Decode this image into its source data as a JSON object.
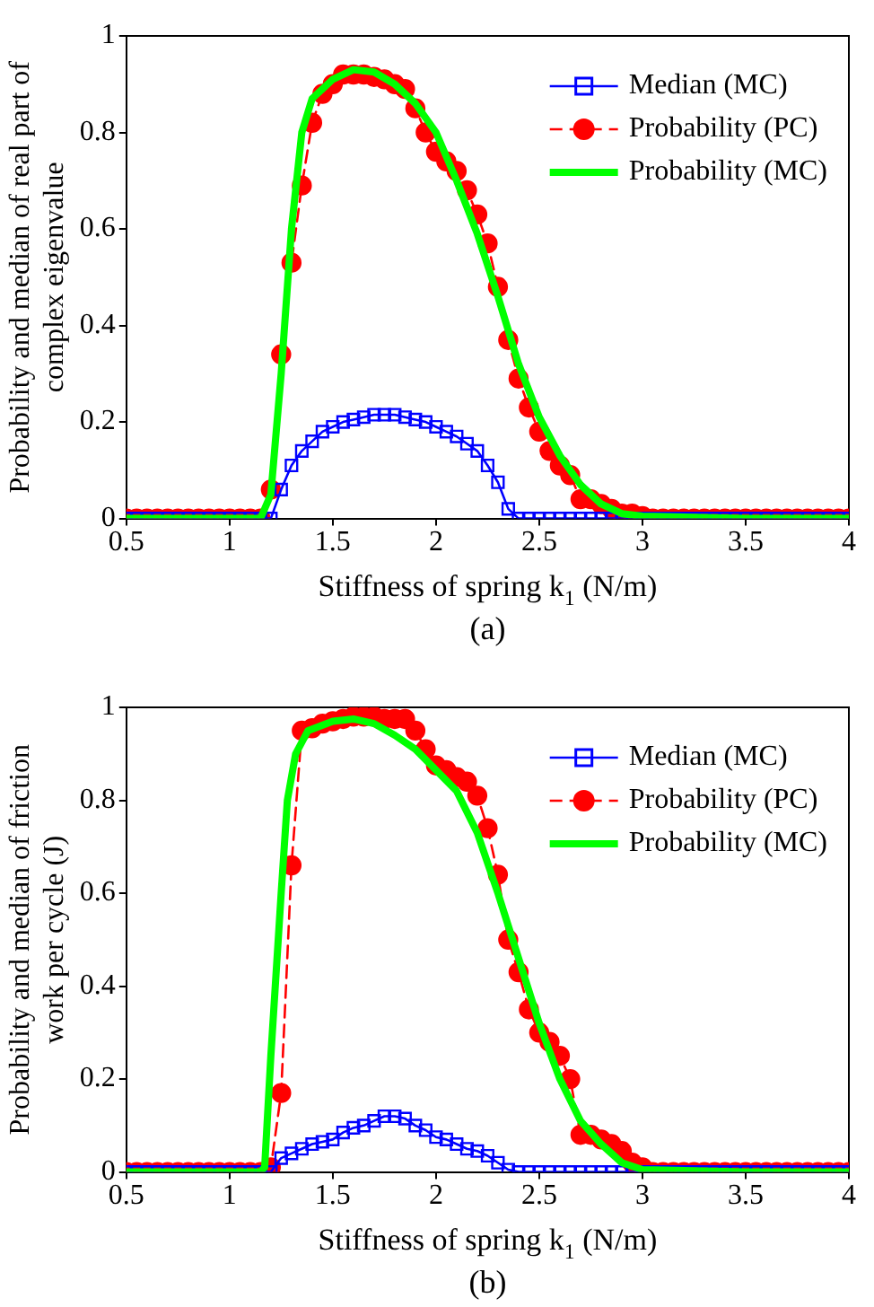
{
  "chart_data": [
    {
      "type": "line",
      "xlabel": "Stiffness of spring k$_{1}$ (N/m)",
      "ylabel": "Probability and median of real part of complex eigenvalue",
      "annotations": [
        "(a)"
      ],
      "xlim": [
        0.5,
        4
      ],
      "xticks": [
        0.5,
        1,
        1.5,
        2,
        2.5,
        3,
        3.5,
        4
      ],
      "ylim": [
        0,
        1
      ],
      "yticks": [
        0,
        0.2,
        0.4,
        0.6,
        0.8,
        1
      ],
      "grid": false,
      "legend": "top right",
      "x": [
        0.5,
        0.55,
        0.6,
        0.65,
        0.7,
        0.75,
        0.8,
        0.85,
        0.9,
        0.95,
        1,
        1.05,
        1.1,
        1.15,
        1.2,
        1.25,
        1.3,
        1.35,
        1.4,
        1.45,
        1.5,
        1.55,
        1.6,
        1.65,
        1.7,
        1.75,
        1.8,
        1.85,
        1.9,
        1.95,
        2,
        2.05,
        2.1,
        2.15,
        2.2,
        2.25,
        2.3,
        2.35,
        2.4,
        2.45,
        2.5,
        2.55,
        2.6,
        2.65,
        2.7,
        2.75,
        2.8,
        2.85,
        2.9,
        2.95,
        3,
        3.05,
        3.1,
        3.15,
        3.2,
        3.25,
        3.3,
        3.35,
        3.4,
        3.45,
        3.5,
        3.55,
        3.6,
        3.65,
        3.7,
        3.75,
        3.8,
        3.85,
        3.9,
        3.95,
        4
      ],
      "series": [
        {
          "name": "Median (MC)",
          "color": "#0000ff",
          "marker": "square",
          "line_style": "solid",
          "values": [
            0,
            0,
            0,
            0,
            0,
            0,
            0,
            0,
            0,
            0,
            0,
            0,
            0,
            0,
            0,
            0.06,
            0.11,
            0.14,
            0.16,
            0.18,
            0.19,
            0.2,
            0.205,
            0.21,
            0.215,
            0.215,
            0.215,
            0.21,
            0.205,
            0.2,
            0.19,
            0.18,
            0.17,
            0.155,
            0.14,
            0.11,
            0.075,
            0.02,
            0,
            0,
            0,
            0,
            0,
            0,
            0,
            0,
            0,
            0,
            0,
            0,
            0,
            0,
            0,
            0,
            0,
            0,
            0,
            0,
            0,
            0,
            0,
            0,
            0,
            0,
            0,
            0,
            0,
            0,
            0,
            0,
            0
          ]
        },
        {
          "name": "Probability (PC)",
          "color": "#ff0000",
          "marker": "circle",
          "line_style": "dashed",
          "values": [
            0,
            0,
            0,
            0,
            0,
            0,
            0,
            0,
            0,
            0,
            0,
            0,
            0,
            0,
            0.06,
            0.34,
            0.53,
            0.69,
            0.82,
            0.88,
            0.9,
            0.92,
            0.92,
            0.92,
            0.915,
            0.91,
            0.9,
            0.89,
            0.85,
            0.8,
            0.76,
            0.74,
            0.72,
            0.68,
            0.63,
            0.57,
            0.48,
            0.37,
            0.29,
            0.23,
            0.18,
            0.14,
            0.11,
            0.09,
            0.04,
            0.04,
            0.03,
            0.02,
            0.01,
            0.01,
            0.005,
            0,
            0,
            0,
            0,
            0,
            0,
            0,
            0,
            0,
            0,
            0,
            0,
            0,
            0,
            0,
            0,
            0,
            0,
            0,
            0
          ]
        },
        {
          "name": "Probability (MC)",
          "color": "#00ff00",
          "marker": "none",
          "line_style": "solid",
          "x": [
            0.5,
            1,
            1.15,
            1.2,
            1.25,
            1.3,
            1.35,
            1.4,
            1.5,
            1.6,
            1.7,
            1.8,
            1.9,
            2,
            2.1,
            2.2,
            2.3,
            2.4,
            2.5,
            2.6,
            2.7,
            2.8,
            2.9,
            3,
            3.5,
            4
          ],
          "values": [
            0,
            0,
            0,
            0.05,
            0.3,
            0.6,
            0.8,
            0.87,
            0.91,
            0.93,
            0.925,
            0.9,
            0.86,
            0.8,
            0.7,
            0.59,
            0.46,
            0.32,
            0.21,
            0.13,
            0.07,
            0.03,
            0.01,
            0.005,
            0,
            0
          ]
        }
      ]
    },
    {
      "type": "line",
      "xlabel": "Stiffness of spring k$_{1}$ (N/m)",
      "ylabel": "Probability and median of friction work per cycle (J)",
      "annotations": [
        "(b)"
      ],
      "xlim": [
        0.5,
        4
      ],
      "xticks": [
        0.5,
        1,
        1.5,
        2,
        2.5,
        3,
        3.5,
        4
      ],
      "ylim": [
        0,
        1
      ],
      "yticks": [
        0,
        0.2,
        0.4,
        0.6,
        0.8,
        1
      ],
      "grid": false,
      "legend": "top right",
      "x": [
        0.5,
        0.55,
        0.6,
        0.65,
        0.7,
        0.75,
        0.8,
        0.85,
        0.9,
        0.95,
        1,
        1.05,
        1.1,
        1.15,
        1.2,
        1.25,
        1.3,
        1.35,
        1.4,
        1.45,
        1.5,
        1.55,
        1.6,
        1.65,
        1.7,
        1.75,
        1.8,
        1.85,
        1.9,
        1.95,
        2,
        2.05,
        2.1,
        2.15,
        2.2,
        2.25,
        2.3,
        2.35,
        2.4,
        2.45,
        2.5,
        2.55,
        2.6,
        2.65,
        2.7,
        2.75,
        2.8,
        2.85,
        2.9,
        2.95,
        3,
        3.05,
        3.1,
        3.15,
        3.2,
        3.25,
        3.3,
        3.35,
        3.4,
        3.45,
        3.5,
        3.55,
        3.6,
        3.65,
        3.7,
        3.75,
        3.8,
        3.85,
        3.9,
        3.95,
        4
      ],
      "series": [
        {
          "name": "Median (MC)",
          "color": "#0000ff",
          "marker": "square",
          "line_style": "solid",
          "values": [
            0,
            0,
            0,
            0,
            0,
            0,
            0,
            0,
            0,
            0,
            0,
            0,
            0,
            0,
            0,
            0.03,
            0.04,
            0.05,
            0.06,
            0.065,
            0.07,
            0.085,
            0.095,
            0.1,
            0.11,
            0.12,
            0.12,
            0.115,
            0.1,
            0.09,
            0.075,
            0.07,
            0.06,
            0.05,
            0.045,
            0.035,
            0.02,
            0.005,
            0,
            0,
            0,
            0,
            0,
            0,
            0,
            0,
            0,
            0,
            0,
            0,
            0,
            0,
            0,
            0,
            0,
            0,
            0,
            0,
            0,
            0,
            0,
            0,
            0,
            0,
            0,
            0,
            0,
            0,
            0,
            0,
            0
          ]
        },
        {
          "name": "Probability (PC)",
          "color": "#ff0000",
          "marker": "circle",
          "line_style": "dashed",
          "values": [
            0,
            0,
            0,
            0,
            0,
            0,
            0,
            0,
            0,
            0,
            0,
            0,
            0,
            0,
            0.01,
            0.17,
            0.66,
            0.95,
            0.955,
            0.965,
            0.97,
            0.975,
            0.98,
            0.98,
            0.98,
            0.975,
            0.975,
            0.975,
            0.95,
            0.91,
            0.875,
            0.865,
            0.85,
            0.84,
            0.81,
            0.74,
            0.64,
            0.5,
            0.43,
            0.35,
            0.3,
            0.28,
            0.25,
            0.2,
            0.08,
            0.08,
            0.07,
            0.06,
            0.045,
            0.02,
            0.01,
            0,
            0,
            0,
            0,
            0,
            0,
            0,
            0,
            0,
            0,
            0,
            0,
            0,
            0,
            0,
            0,
            0,
            0,
            0,
            0
          ]
        },
        {
          "name": "Probability (MC)",
          "color": "#00ff00",
          "marker": "none",
          "line_style": "solid",
          "x": [
            0.5,
            1,
            1.15,
            1.17,
            1.2,
            1.25,
            1.28,
            1.32,
            1.38,
            1.5,
            1.6,
            1.7,
            1.8,
            1.9,
            2,
            2.1,
            2.2,
            2.3,
            2.4,
            2.5,
            2.6,
            2.7,
            2.8,
            2.9,
            3,
            3.5,
            4
          ],
          "values": [
            0,
            0,
            0,
            0.01,
            0.25,
            0.6,
            0.8,
            0.9,
            0.95,
            0.97,
            0.975,
            0.965,
            0.94,
            0.91,
            0.865,
            0.82,
            0.73,
            0.6,
            0.46,
            0.32,
            0.2,
            0.11,
            0.06,
            0.02,
            0.005,
            0,
            0
          ]
        }
      ]
    }
  ]
}
